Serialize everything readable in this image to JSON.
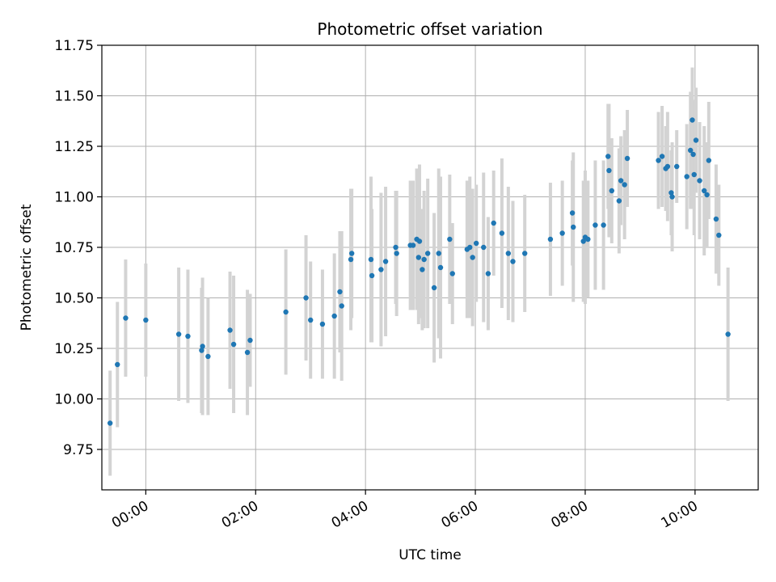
{
  "chart_data": {
    "type": "scatter",
    "title": "Photometric offset variation",
    "xlabel": "UTC time",
    "ylabel": "Photometric offset",
    "xlim": [
      "23:12",
      "11:09"
    ],
    "ylim": [
      9.55,
      11.75
    ],
    "x_ticks": [
      "00:00",
      "02:00",
      "04:00",
      "06:00",
      "08:00",
      "10:00"
    ],
    "y_ticks": [
      9.75,
      10.0,
      10.25,
      10.5,
      10.75,
      11.0,
      11.25,
      11.5,
      11.75
    ],
    "y_tick_labels": [
      "9.75",
      "10.00",
      "10.25",
      "10.50",
      "10.75",
      "11.00",
      "11.25",
      "11.50",
      "11.75"
    ],
    "grid": true,
    "colors": {
      "point": "#1f77b4",
      "errorbar": "#d3d3d3",
      "grid": "#b0b0b0"
    },
    "series": [
      {
        "x": [
          "23:21",
          "23:29",
          "23:38",
          "00:00",
          "00:36",
          "00:46",
          "01:01",
          "01:02",
          "01:08",
          "01:32",
          "01:36",
          "01:51",
          "01:54",
          "02:33",
          "02:55",
          "03:00",
          "03:13",
          "03:26",
          "03:32",
          "03:34",
          "03:44",
          "03:45",
          "04:06",
          "04:07",
          "04:17",
          "04:22",
          "04:33",
          "04:34",
          "04:49",
          "04:52",
          "04:56",
          "04:58",
          "04:59",
          "05:02",
          "05:04",
          "05:08",
          "05:15",
          "05:20",
          "05:22",
          "05:32",
          "05:35",
          "05:51",
          "05:54",
          "05:57",
          "06:01",
          "06:09",
          "06:14",
          "06:20",
          "06:29",
          "06:36",
          "06:41",
          "06:54",
          "07:22",
          "07:35",
          "07:46",
          "07:47",
          "07:58",
          "08:00",
          "08:03",
          "08:11",
          "08:20",
          "08:25",
          "08:26",
          "08:29",
          "08:37",
          "08:39",
          "08:43",
          "08:46",
          "09:20",
          "09:24",
          "09:28",
          "09:30",
          "09:34",
          "09:35",
          "09:40",
          "09:51",
          "09:55",
          "09:57",
          "09:58",
          "09:59",
          "10:01",
          "10:05",
          "10:10",
          "10:13",
          "10:15",
          "10:23",
          "10:26",
          "10:36"
        ],
        "y": [
          9.88,
          10.17,
          10.4,
          10.39,
          10.32,
          10.31,
          10.24,
          10.26,
          10.21,
          10.34,
          10.27,
          10.23,
          10.29,
          10.43,
          10.5,
          10.39,
          10.37,
          10.41,
          10.53,
          10.46,
          10.69,
          10.72,
          10.69,
          10.61,
          10.64,
          10.68,
          10.75,
          10.72,
          10.76,
          10.76,
          10.79,
          10.7,
          10.78,
          10.64,
          10.69,
          10.72,
          10.55,
          10.72,
          10.65,
          10.79,
          10.62,
          10.74,
          10.75,
          10.7,
          10.77,
          10.75,
          10.62,
          10.87,
          10.82,
          10.72,
          10.68,
          10.72,
          10.79,
          10.82,
          10.92,
          10.85,
          10.78,
          10.8,
          10.79,
          10.86,
          10.86,
          11.2,
          11.13,
          11.03,
          10.98,
          11.08,
          11.06,
          11.19,
          11.18,
          11.2,
          11.14,
          11.15,
          11.02,
          11.0,
          11.15,
          11.1,
          11.23,
          11.38,
          11.21,
          11.11,
          11.28,
          11.08,
          11.03,
          11.01,
          11.18,
          10.89,
          10.81,
          10.32
        ],
        "yerr": [
          0.26,
          0.31,
          0.29,
          0.28,
          0.33,
          0.33,
          0.31,
          0.34,
          0.29,
          0.29,
          0.34,
          0.31,
          0.23,
          0.31,
          0.31,
          0.29,
          0.27,
          0.31,
          0.3,
          0.37,
          0.35,
          0.32,
          0.41,
          0.33,
          0.38,
          0.37,
          0.28,
          0.31,
          0.32,
          0.32,
          0.35,
          0.33,
          0.38,
          0.3,
          0.34,
          0.37,
          0.37,
          0.42,
          0.45,
          0.32,
          0.25,
          0.34,
          0.35,
          0.34,
          0.29,
          0.37,
          0.28,
          0.26,
          0.37,
          0.33,
          0.3,
          0.29,
          0.28,
          0.26,
          0.26,
          0.37,
          0.3,
          0.33,
          0.29,
          0.32,
          0.32,
          0.26,
          0.33,
          0.26,
          0.26,
          0.22,
          0.27,
          0.24,
          0.24,
          0.25,
          0.21,
          0.27,
          0.21,
          0.27,
          0.18,
          0.26,
          0.29,
          0.26,
          0.27,
          0.3,
          0.26,
          0.29,
          0.32,
          0.26,
          0.29,
          0.27,
          0.25,
          0.33
        ]
      }
    ]
  }
}
